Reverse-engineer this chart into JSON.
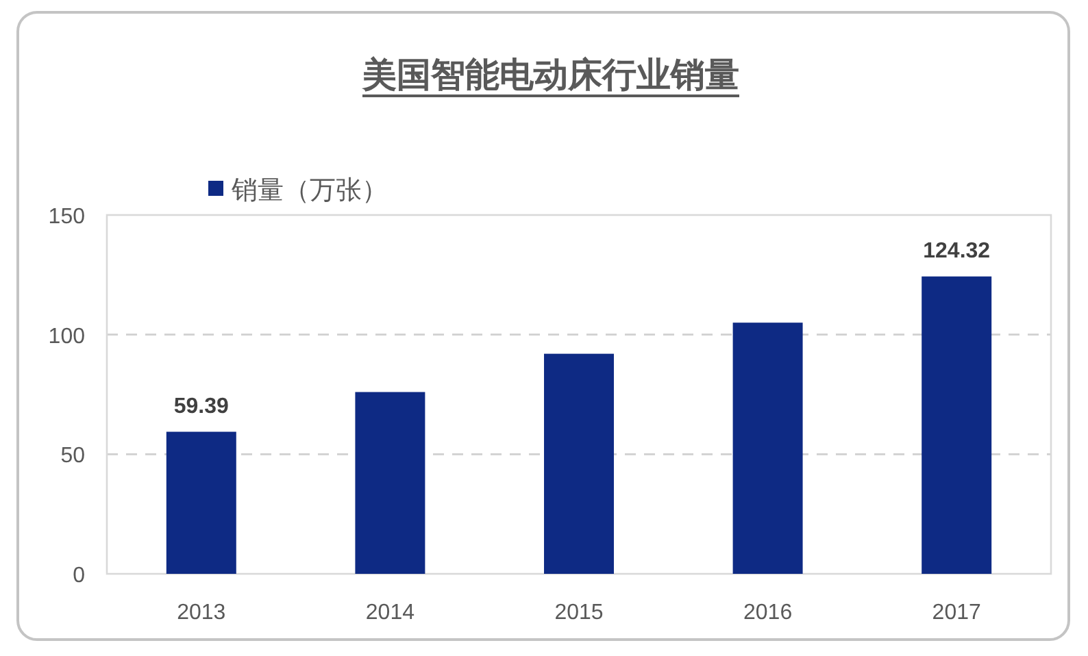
{
  "chart_data": {
    "type": "bar",
    "title": "美国智能电动床行业销量",
    "categories": [
      "2013",
      "2014",
      "2015",
      "2016",
      "2017"
    ],
    "series": [
      {
        "name": "销量（万张）",
        "color": "#0e2a84",
        "values": [
          59.39,
          76,
          92,
          105,
          124.32
        ],
        "value_labels": [
          "59.39",
          null,
          null,
          null,
          "124.32"
        ]
      }
    ],
    "ylim": [
      0,
      150
    ],
    "yticks": [
      0,
      50,
      100,
      150
    ],
    "grid": "y",
    "legend": "top left"
  }
}
